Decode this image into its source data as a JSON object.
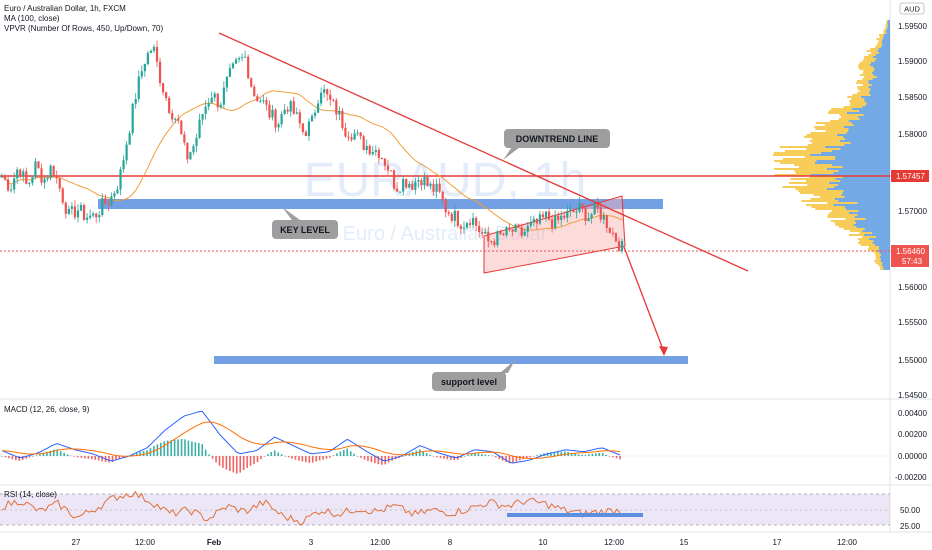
{
  "legend": {
    "title": "Euro / Australian Dollar, 1h, FXCM",
    "ma": "MA (100, close)",
    "vpvr": "VPVR (Number Of Rows, 450, Up/Down, 70)",
    "macd": "MACD (12, 26, close, 9)",
    "rsi": "RSI (14, close)"
  },
  "watermark": {
    "symbol": "EURAUD, 1h",
    "name": "Euro / Australian Dollar"
  },
  "currency_badge": "AUD",
  "price_axis": {
    "ticks": [
      "1.59500",
      "1.59000",
      "1.58500",
      "1.58000",
      "1.57000",
      "1.56000",
      "1.55500",
      "1.55000",
      "1.54500"
    ],
    "key_level_label": "1.57457",
    "last_price_label": "1.56460",
    "countdown_label": "57:43"
  },
  "macd_axis": {
    "ticks": [
      "0.00400",
      "0.00200",
      "0.00000",
      "-0.00200"
    ]
  },
  "rsi_axis": {
    "ticks": [
      "50.00",
      "25.00"
    ]
  },
  "time_axis": [
    "27",
    "12:00",
    "Feb",
    "3",
    "12:00",
    "8",
    "10",
    "12:00",
    "15",
    "17",
    "12:00"
  ],
  "annotations": {
    "downtrend": "DOWNTREND LINE",
    "key_level": "KEY LEVEL",
    "support": "support level"
  },
  "colors": {
    "up": "#26a69a",
    "down": "#ef5350",
    "trend": "#e53935",
    "zone": "#5b8fe0",
    "ma": "#f39c3c",
    "macd": "#2962ff",
    "signal": "#ff6d00",
    "rsi": "#e0703a"
  },
  "chart_data": {
    "type": "candlestick",
    "symbol": "Euro / Australian Dollar",
    "interval": "1h",
    "price_range": [
      1.544,
      1.597
    ],
    "key_level": 1.57457,
    "last_price": 1.5646,
    "downtrend_line": {
      "from_price": 1.5935,
      "to_price": 1.5618
    },
    "key_level_zone": 1.5705,
    "support_zone": 1.5503,
    "close_path": [
      1.5745,
      1.573,
      1.576,
      1.573,
      1.576,
      1.574,
      1.576,
      1.5725,
      1.569,
      1.57,
      1.569,
      1.569,
      1.5705,
      1.5715,
      1.574,
      1.58,
      1.586,
      1.5905,
      1.5925,
      1.5875,
      1.584,
      1.582,
      1.577,
      1.579,
      1.5835,
      1.586,
      1.5845,
      1.588,
      1.59,
      1.591,
      1.586,
      1.585,
      1.583,
      1.582,
      1.5845,
      1.583,
      1.5805,
      1.582,
      1.587,
      1.585,
      1.5835,
      1.581,
      1.5805,
      1.579,
      1.5785,
      1.578,
      1.576,
      1.573,
      1.574,
      1.5735,
      1.5745,
      1.573,
      1.5725,
      1.57,
      1.569,
      1.568,
      1.569,
      1.567,
      1.5655,
      1.566,
      1.5665,
      1.567,
      1.5665,
      1.5675,
      1.568,
      1.569,
      1.568,
      1.569,
      1.5695,
      1.57,
      1.569,
      1.57,
      1.5685,
      1.5665,
      1.5646
    ],
    "macd": [
      0.0005,
      -0.0002,
      0.0003,
      0.0012,
      0.0006,
      0.0002,
      -0.0005,
      0.0,
      0.0008,
      0.0025,
      0.0038,
      0.0043,
      0.002,
      0.0002,
      0.0005,
      0.0018,
      0.001,
      0.0002,
      0.0004,
      0.0016,
      0.0005,
      -0.0005,
      0.0,
      0.001,
      0.0003,
      -0.0002,
      0.0006,
      0.0004,
      -0.0007,
      -0.0004,
      0.0002,
      0.0006,
      0.0004,
      0.0008,
      0.0001
    ],
    "rsi": [
      55,
      62,
      48,
      58,
      40,
      52,
      66,
      72,
      60,
      45,
      50,
      38,
      55,
      48,
      60,
      42,
      35,
      50,
      45,
      52,
      48,
      55,
      44,
      50,
      46,
      52,
      60,
      55,
      62,
      58,
      50,
      45,
      48,
      50
    ],
    "rsi_levels": [
      70,
      50,
      30
    ]
  }
}
